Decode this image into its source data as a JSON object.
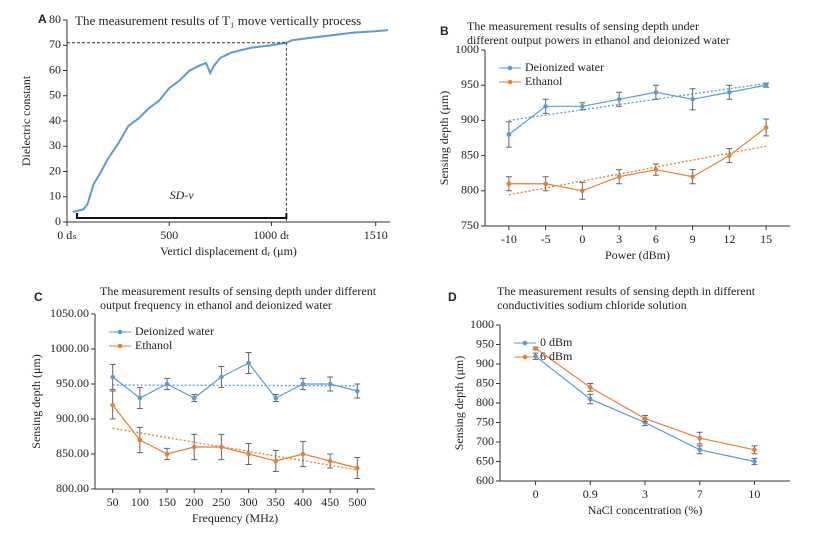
{
  "chart_data": [
    {
      "type": "line",
      "label": "A",
      "title": [
        "The measurement results of T₁ move vertically process"
      ],
      "xlabel": "Verticl displacement dᵣ (μm)",
      "ylabel": "Dielectric constant",
      "x": [
        30,
        80,
        100,
        130,
        160,
        200,
        250,
        300,
        350,
        400,
        450,
        500,
        550,
        600,
        650,
        680,
        700,
        720,
        750,
        800,
        900,
        1000,
        1073,
        1100,
        1200,
        1300,
        1400,
        1500,
        1570
      ],
      "values": [
        4,
        5,
        7,
        15,
        19,
        25,
        31,
        38,
        41,
        45,
        48,
        53,
        56,
        60,
        62,
        63,
        59,
        62,
        65,
        67,
        69,
        70,
        71,
        72,
        73,
        74,
        75,
        75.5,
        76
      ],
      "color": "#5b9bd5",
      "xlim": [
        0,
        1580
      ],
      "ylim": [
        0,
        80
      ],
      "xticks": [
        {
          "value": 0,
          "label": "0 dₛ"
        },
        500,
        {
          "value": 1000,
          "label": "1000 dₜ"
        },
        1510
      ],
      "yticks": [
        0,
        10,
        20,
        30,
        40,
        50,
        60,
        70,
        80
      ],
      "reference": {
        "x": 1073,
        "y": 71
      },
      "annotation": "SD-v"
    },
    {
      "type": "line",
      "label": "B",
      "title": [
        "The measurement results of sensing depth under",
        "different output powers in ethanol and deionized water"
      ],
      "xlabel": "Power (dBm)",
      "ylabel": "Sensing depth (μm)",
      "categories": [
        "-10",
        "-5",
        "0",
        "3",
        "6",
        "9",
        "12",
        "15"
      ],
      "series": [
        {
          "name": "Deionized water",
          "color": "#5b9bd5",
          "values": [
            880,
            920,
            920,
            930,
            940,
            930,
            940,
            950
          ],
          "errors": [
            18,
            10,
            5,
            10,
            10,
            15,
            10,
            3
          ]
        },
        {
          "name": "Ethanol",
          "color": "#ed7d31",
          "values": [
            810,
            810,
            800,
            820,
            830,
            820,
            850,
            890
          ],
          "errors": [
            10,
            10,
            12,
            10,
            8,
            10,
            10,
            12
          ]
        }
      ],
      "ylim": [
        750,
        1000
      ],
      "yticks": [
        750,
        800,
        850,
        900,
        950,
        1000
      ],
      "trendline": true,
      "legend": "upper left"
    },
    {
      "type": "line",
      "label": "C",
      "title": [
        "The measurement results of sensing depth under different",
        "output frequency in ethanol and deionized water"
      ],
      "xlabel": "Frequency (MHz)",
      "ylabel": "Sensing depth (μm)",
      "categories": [
        "50",
        "100",
        "150",
        "200",
        "250",
        "300",
        "350",
        "400",
        "450",
        "500"
      ],
      "series": [
        {
          "name": "Deionized water",
          "color": "#5b9bd5",
          "values": [
            960,
            930,
            950,
            930,
            960,
            980,
            930,
            950,
            950,
            940
          ],
          "errors": [
            18,
            15,
            8,
            5,
            15,
            15,
            5,
            8,
            10,
            10
          ]
        },
        {
          "name": "Ethanol",
          "color": "#ed7d31",
          "values": [
            920,
            870,
            850,
            860,
            860,
            850,
            840,
            850,
            840,
            830
          ],
          "errors": [
            20,
            18,
            8,
            18,
            18,
            15,
            15,
            18,
            10,
            15
          ]
        }
      ],
      "ylim": [
        800,
        1050
      ],
      "yticks": [
        {
          "value": 800,
          "label": "800.00"
        },
        {
          "value": 850,
          "label": "850.00"
        },
        {
          "value": 900,
          "label": "900.00"
        },
        {
          "value": 950,
          "label": "950.00"
        },
        {
          "value": 1000,
          "label": "1000.00"
        },
        {
          "value": 1050,
          "label": "1050.00"
        }
      ],
      "trendline": true,
      "legend": "upper left"
    },
    {
      "type": "line",
      "label": "D",
      "title": [
        "The measurement results of sensing depth in different",
        "conductivities sodium chloride solution"
      ],
      "xlabel": "NaCl concentration (%)",
      "ylabel": "Sensing depth (μm)",
      "categories": [
        "0",
        "0.9",
        "3",
        "7",
        "10"
      ],
      "series": [
        {
          "name": "0 dBm",
          "color": "#5b9bd5",
          "values": [
            920,
            810,
            750,
            680,
            650
          ],
          "errors": [
            8,
            12,
            8,
            10,
            8
          ]
        },
        {
          "name": "6 dBm",
          "color": "#ed7d31",
          "values": [
            940,
            840,
            760,
            710,
            680
          ],
          "errors": [
            3,
            10,
            8,
            15,
            10
          ]
        }
      ],
      "ylim": [
        600,
        1000
      ],
      "yticks": [
        600,
        650,
        700,
        750,
        800,
        850,
        900,
        950,
        1000
      ],
      "legend": "upper left"
    }
  ]
}
